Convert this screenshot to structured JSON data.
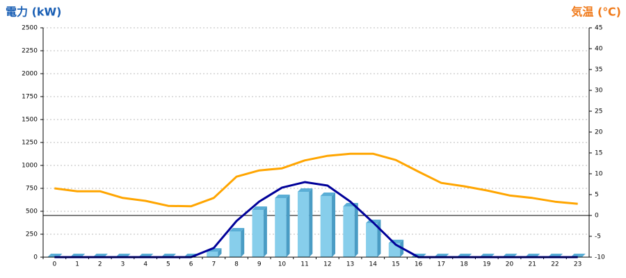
{
  "chart_data": {
    "type": "bar",
    "y_title": "電力 (kW)",
    "y2_title": "気温 (℃)",
    "y_title_color": "#1a5fb4",
    "y2_title_color": "#f07a1a",
    "categories": [
      "0",
      "1",
      "2",
      "3",
      "4",
      "5",
      "6",
      "7",
      "8",
      "9",
      "10",
      "11",
      "12",
      "13",
      "14",
      "15",
      "16",
      "17",
      "18",
      "19",
      "20",
      "21",
      "22",
      "23"
    ],
    "series": [
      {
        "type": "bar",
        "color": "#87ceeb",
        "values": [
          0,
          0,
          0,
          0,
          0,
          0,
          0,
          60,
          280,
          515,
          644,
          712,
          667,
          553,
          371,
          152,
          0,
          0,
          0,
          0,
          0,
          0,
          0,
          0
        ]
      },
      {
        "type": "line",
        "color": "#000099",
        "values": [
          0,
          0,
          0,
          0,
          0,
          0,
          0,
          100,
          394,
          606,
          758,
          818,
          780,
          606,
          379,
          136,
          0,
          0,
          0,
          0,
          0,
          0,
          0,
          0
        ]
      },
      {
        "type": "line",
        "color": "#ffa500",
        "axis": "y2",
        "values": [
          6.5,
          5.8,
          5.8,
          4.2,
          3.5,
          2.3,
          2.2,
          4.2,
          9.3,
          10.8,
          11.3,
          13.2,
          14.3,
          14.8,
          14.8,
          13.3,
          10.5,
          7.8,
          7,
          6,
          4.8,
          4.2,
          3.3,
          2.8
        ]
      }
    ],
    "ylim": [
      0,
      2500
    ],
    "yticks": [
      0,
      250,
      500,
      750,
      1000,
      1250,
      1500,
      1750,
      2000,
      2250,
      2500
    ],
    "y2lim": [
      -10,
      45
    ],
    "y2ticks": [
      -10,
      -5,
      0,
      5,
      10,
      15,
      20,
      25,
      30,
      35,
      40,
      45
    ],
    "grid": true,
    "hlines": [
      {
        "axis": "y2",
        "value": 0
      }
    ]
  }
}
